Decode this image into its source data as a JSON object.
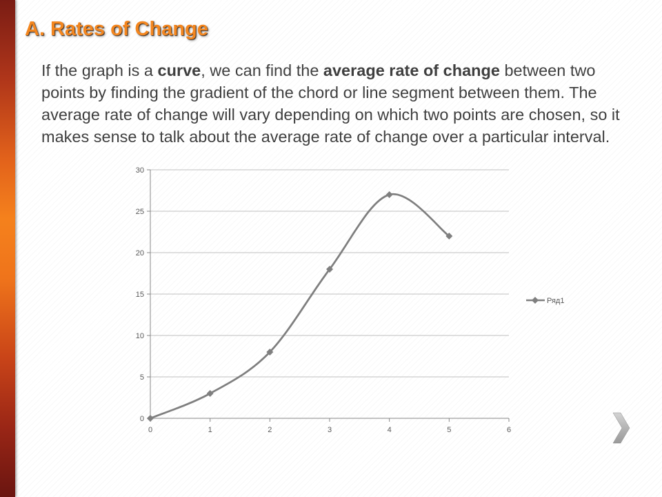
{
  "slide": {
    "title": "A. Rates of Change",
    "paragraph": {
      "lines": [
        [
          "If the graph is a ",
          "curve",
          ", we can find the ",
          "average rate of change",
          " between two"
        ],
        [
          "points by finding the gradient of the chord or line segment between them. The"
        ],
        [
          "average rate of change will vary depending on which two points are chosen, so it"
        ],
        [
          "makes sense to talk about the average rate of change over a particular interval."
        ]
      ]
    }
  },
  "navigation": {
    "next_icon": "chevron-right-icon"
  },
  "colors": {
    "title": "#f3861f",
    "body_text": "#3f3f3f",
    "accent_bar": "#f5811c",
    "series": "#7f7f7f",
    "gridline": "#bfbfbf",
    "axis": "#868686",
    "axis_text": "#595959"
  },
  "chart_data": {
    "type": "line",
    "smooth": true,
    "x": [
      0,
      1,
      2,
      3,
      4,
      5
    ],
    "series": [
      {
        "name": "Ряд1",
        "values": [
          0,
          3,
          8,
          18,
          27,
          22
        ],
        "color": "#7f7f7f"
      }
    ],
    "xlim": [
      0,
      6
    ],
    "ylim": [
      0,
      30
    ],
    "xticks": [
      0,
      1,
      2,
      3,
      4,
      5,
      6
    ],
    "yticks": [
      0,
      5,
      10,
      15,
      20,
      25,
      30
    ],
    "grid": {
      "horizontal": true,
      "vertical": false
    },
    "legend": "right"
  }
}
